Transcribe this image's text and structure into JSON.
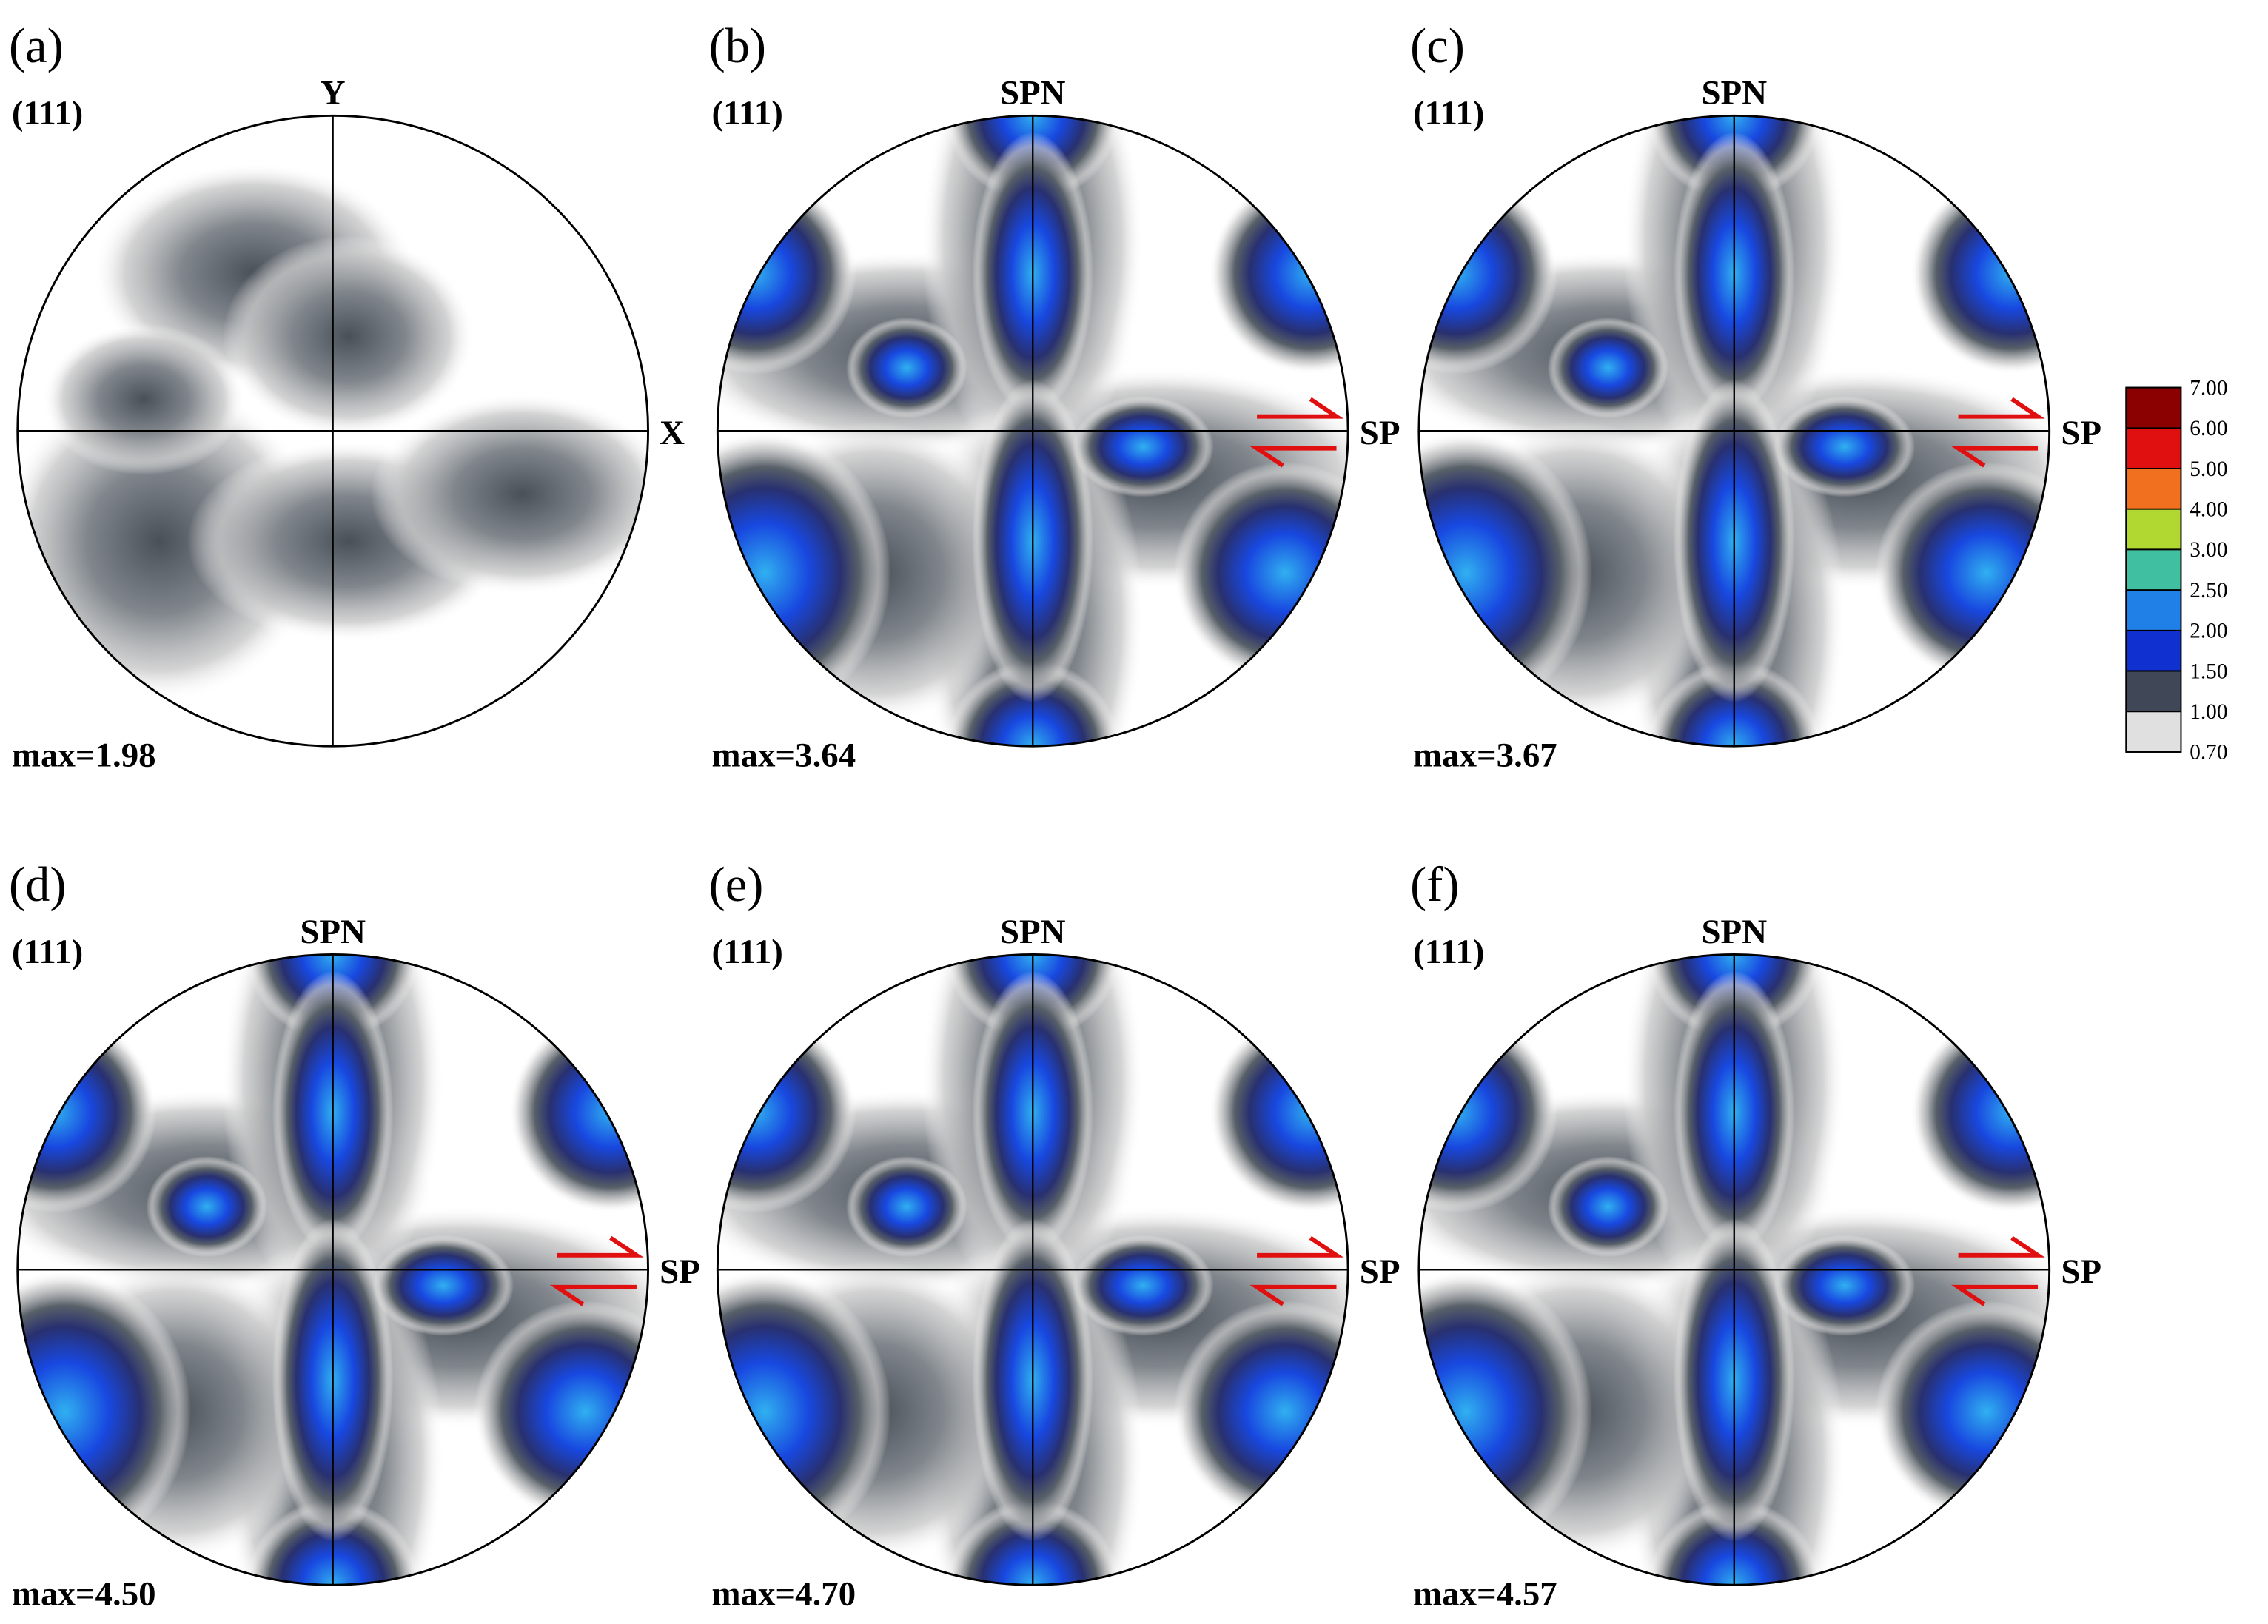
{
  "panels": [
    {
      "label": "(a)",
      "plane": "(111)",
      "top": "Y",
      "right": "X",
      "max": "max=1.98"
    },
    {
      "label": "(b)",
      "plane": "(111)",
      "top": "SPN",
      "right": "SP",
      "max": "max=3.64"
    },
    {
      "label": "(c)",
      "plane": "(111)",
      "top": "SPN",
      "right": "SP",
      "max": "max=3.67"
    },
    {
      "label": "(d)",
      "plane": "(111)",
      "top": "SPN",
      "right": "SP",
      "max": "max=4.50"
    },
    {
      "label": "(e)",
      "plane": "(111)",
      "top": "SPN",
      "right": "SP",
      "max": "max=4.70"
    },
    {
      "label": "(f)",
      "plane": "(111)",
      "top": "SPN",
      "right": "SP",
      "max": "max=4.57"
    }
  ],
  "colorbar": {
    "ticks": [
      "7.00",
      "6.00",
      "5.00",
      "4.00",
      "3.00",
      "2.50",
      "2.00",
      "1.50",
      "1.00",
      "0.70"
    ],
    "colors": [
      "#8b0000",
      "#e01010",
      "#f07020",
      "#b0d830",
      "#40c0a0",
      "#2080e8",
      "#1030d0",
      "#404858",
      "#e0e0e0"
    ]
  }
}
